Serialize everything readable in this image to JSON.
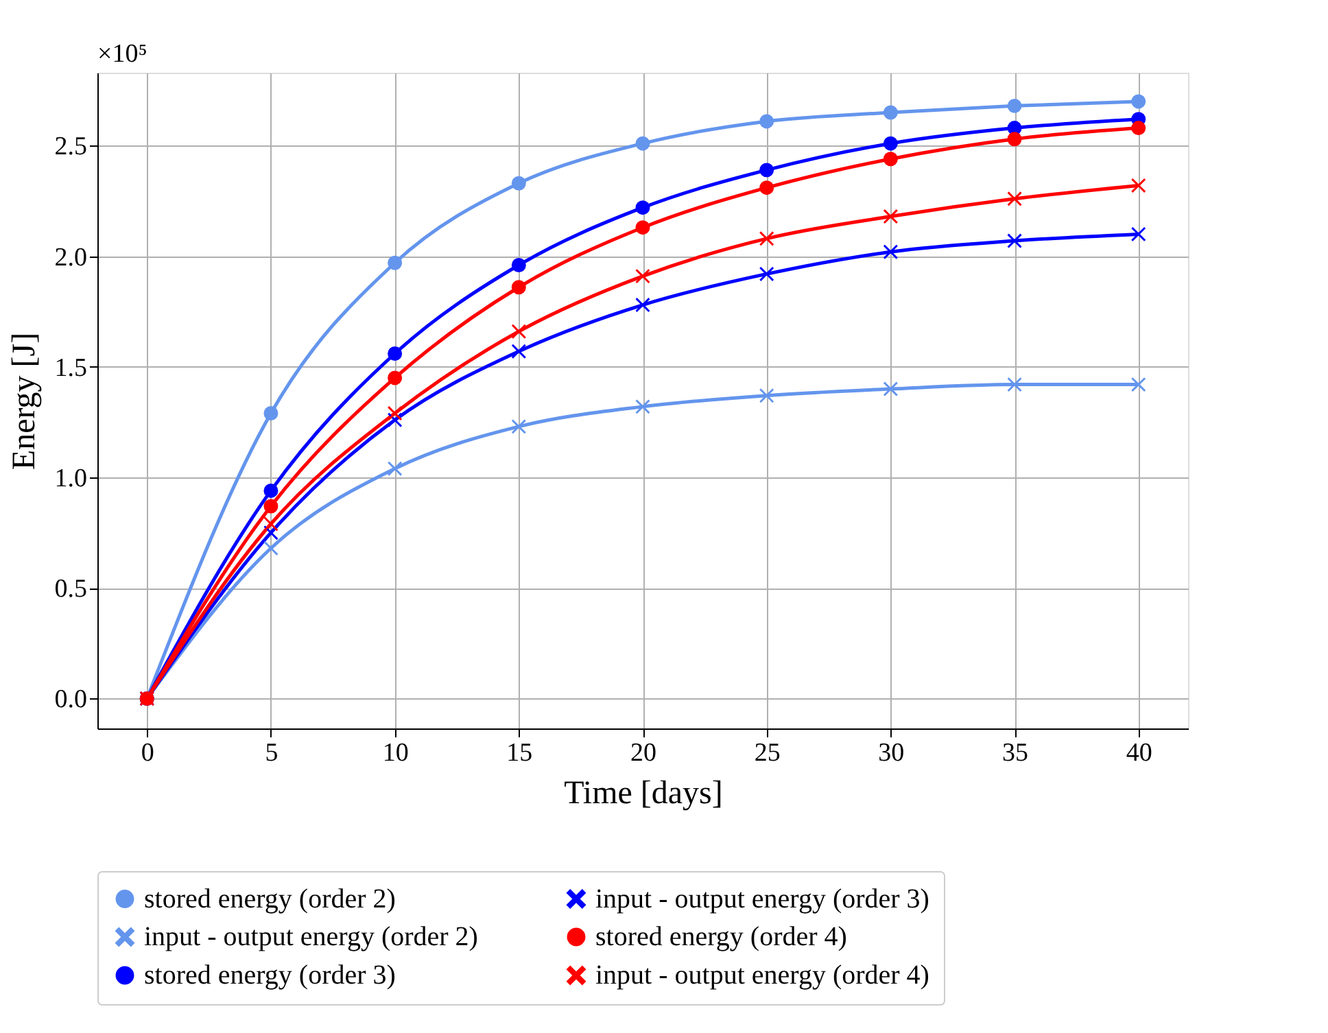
{
  "chart_data": {
    "type": "line",
    "xlabel": "Time [days]",
    "ylabel": "Energy [J]",
    "annotations": [
      "×10⁵"
    ],
    "x": [
      0,
      5,
      10,
      15,
      20,
      25,
      30,
      35,
      40
    ],
    "xlim": [
      -2,
      42
    ],
    "xticks": [
      0,
      5,
      10,
      15,
      20,
      25,
      30,
      35,
      40
    ],
    "ylim": [
      -0.135,
      2.83
    ],
    "yticks": [
      {
        "value": 0,
        "label": "0.0"
      },
      0.5,
      {
        "value": 1,
        "label": "1.0"
      },
      1.5,
      {
        "value": 2,
        "label": "2.0"
      },
      2.5
    ],
    "grid": true,
    "legend": "bottom",
    "line_style": "solid",
    "series": [
      {
        "name": "stored energy (order 2)",
        "color": "#6495ed",
        "marker": "circle",
        "values": [
          0,
          1.29,
          1.97,
          2.33,
          2.51,
          2.61,
          2.65,
          2.68,
          2.7
        ]
      },
      {
        "name": "input - output energy (order 2)",
        "color": "#6495ed",
        "marker": "cross",
        "values": [
          0,
          0.68,
          1.04,
          1.23,
          1.32,
          1.37,
          1.4,
          1.42,
          1.42
        ]
      },
      {
        "name": "stored energy (order 3)",
        "color": "#0000ff",
        "marker": "circle",
        "values": [
          0,
          0.94,
          1.56,
          1.96,
          2.22,
          2.39,
          2.51,
          2.58,
          2.62
        ]
      },
      {
        "name": "input - output energy (order 3)",
        "color": "#0000ff",
        "marker": "cross",
        "values": [
          0,
          0.75,
          1.26,
          1.57,
          1.78,
          1.92,
          2.02,
          2.07,
          2.1
        ]
      },
      {
        "name": "stored energy (order 4)",
        "color": "#ff0000",
        "marker": "circle",
        "values": [
          0,
          0.87,
          1.45,
          1.86,
          2.13,
          2.31,
          2.44,
          2.53,
          2.58
        ]
      },
      {
        "name": "input - output energy (order 4)",
        "color": "#ff0000",
        "marker": "cross",
        "values": [
          0,
          0.79,
          1.29,
          1.66,
          1.91,
          2.08,
          2.18,
          2.26,
          2.32
        ]
      }
    ]
  }
}
